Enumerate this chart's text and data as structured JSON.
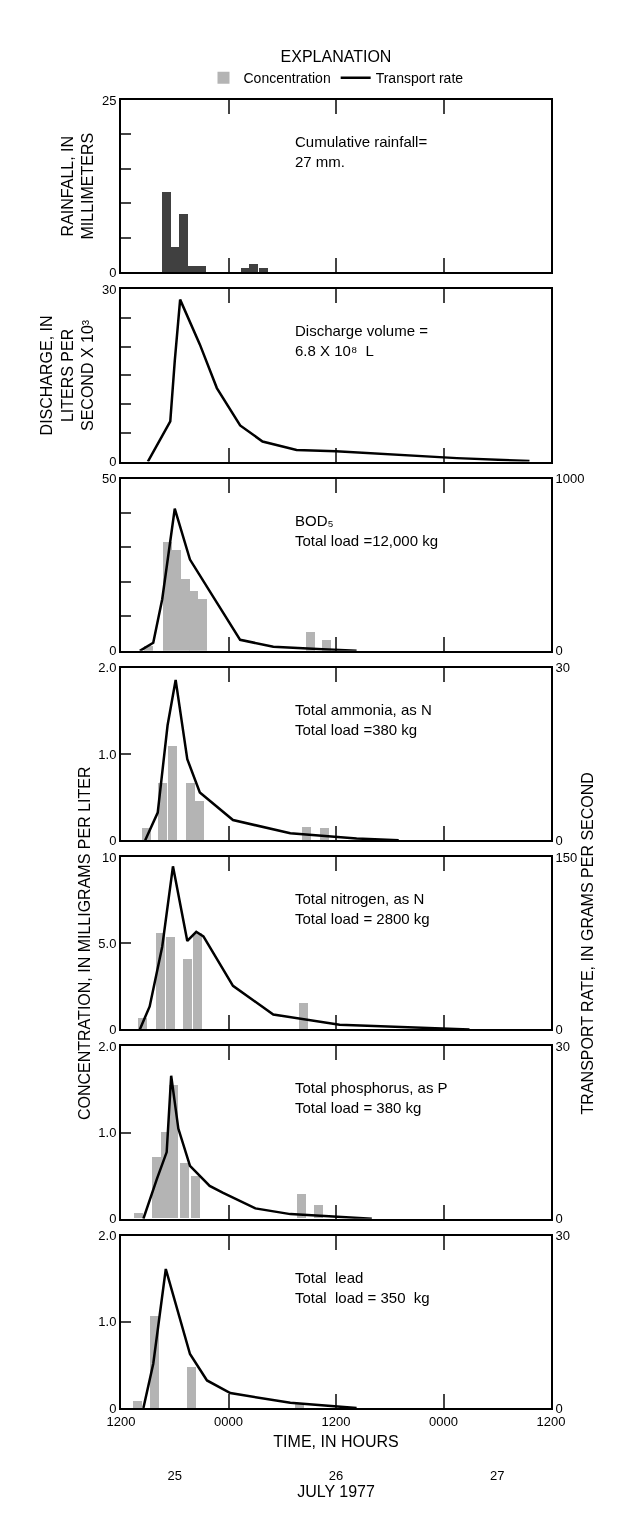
{
  "chart_data": [
    {
      "type": "bar",
      "ylabel": "RAINFALL, IN\nMILLIMETERS",
      "annotations": [
        "Cumulative rainfall=\n27 mm."
      ],
      "xlim": [
        "1977-07-25T12:00",
        "1977-07-27T12:00"
      ],
      "xticks": [
        {
          "value": "1977-07-25T12:00",
          "label": null
        },
        {
          "value": "1977-07-26T00:00",
          "label": null
        },
        {
          "value": "1977-07-26T12:00",
          "label": null
        },
        {
          "value": "1977-07-27T00:00",
          "label": null
        },
        {
          "value": "1977-07-27T12:00",
          "label": null
        }
      ],
      "ylim": [
        0,
        25
      ],
      "yticks": [
        0,
        {
          "value": 5,
          "label": null
        },
        {
          "value": 10,
          "label": null
        },
        {
          "value": 15,
          "label": null
        },
        {
          "value": 20,
          "label": null
        },
        25
      ],
      "tick_labels": "y",
      "series": [
        {
          "color": "#404040",
          "x": [
            "1977-07-25T17:06",
            "1977-07-25T18:00",
            "1977-07-25T19:00",
            "1977-07-25T20:00",
            "1977-07-25T21:00",
            "1977-07-26T01:54",
            "1977-07-26T02:48",
            "1977-07-26T03:54"
          ],
          "values": [
            11.6,
            3.6,
            8.4,
            0.9,
            0.9,
            0.6,
            1.2,
            0.6
          ]
        }
      ]
    },
    {
      "type": "line",
      "ylabel": "DISCHARGE, IN\nLITERS PER\nSECOND X 10³",
      "annotations": [
        "Discharge volume =\n6.8 X 10⁸  L"
      ],
      "xlim": [
        "1977-07-25T12:00",
        "1977-07-27T12:00"
      ],
      "xticks": [
        {
          "value": "1977-07-25T12:00",
          "label": null
        },
        {
          "value": "1977-07-26T00:00",
          "label": null
        },
        {
          "value": "1977-07-26T12:00",
          "label": null
        },
        {
          "value": "1977-07-27T00:00",
          "label": null
        },
        {
          "value": "1977-07-27T12:00",
          "label": null
        }
      ],
      "ylim": [
        0,
        30
      ],
      "yticks": [
        0,
        {
          "value": 5,
          "label": null
        },
        {
          "value": 10,
          "label": null
        },
        {
          "value": 15,
          "label": null
        },
        {
          "value": 20,
          "label": null
        },
        {
          "value": 25,
          "label": null
        },
        30
      ],
      "tick_labels": "y",
      "series": [
        {
          "color": "#000000",
          "x": [
            "1977-07-25T15:00",
            "1977-07-25T17:30",
            "1977-07-25T18:00",
            "1977-07-25T18:36",
            "1977-07-25T20:48",
            "1977-07-25T22:42",
            "1977-07-26T01:18",
            "1977-07-26T03:48",
            "1977-07-26T07:36",
            "1977-07-26T12:00",
            "1977-07-27T01:30",
            "1977-07-27T09:36"
          ],
          "values": [
            0,
            7.0,
            17.5,
            28.2,
            20.4,
            12.8,
            6.3,
            3.5,
            2.0,
            1.8,
            0.6,
            0.1
          ]
        }
      ]
    },
    {
      "type": "bar",
      "legend": "top",
      "legend_title": "EXPLANATION",
      "annotations": [
        "BOD₅\nTotal load =12,000 kg"
      ],
      "xlim": [
        "1977-07-25T12:00",
        "1977-07-27T12:00"
      ],
      "xticks": [
        {
          "value": "1977-07-25T12:00",
          "label": null
        },
        {
          "value": "1977-07-26T00:00",
          "label": null
        },
        {
          "value": "1977-07-26T12:00",
          "label": null
        },
        {
          "value": "1977-07-27T00:00",
          "label": null
        },
        {
          "value": "1977-07-27T12:00",
          "label": null
        }
      ],
      "ylim": [
        0,
        50
      ],
      "yticks": [
        0,
        {
          "value": 10,
          "label": null
        },
        {
          "value": 20,
          "label": null
        },
        {
          "value": 30,
          "label": null
        },
        {
          "value": 40,
          "label": null
        },
        50
      ],
      "y2lim": [
        0,
        1000
      ],
      "y2ticks": [
        0,
        1000
      ],
      "tick_labels": "y",
      "series": [
        {
          "name": "Concentration",
          "color": "#b4b4b4",
          "x": [
            "1977-07-25T15:06",
            "1977-07-25T17:12",
            "1977-07-25T18:12",
            "1977-07-25T19:12",
            "1977-07-25T20:06",
            "1977-07-25T21:06",
            "1977-07-26T09:06",
            "1977-07-26T10:54"
          ],
          "values": [
            1.5,
            31.6,
            29.5,
            21,
            17.5,
            15.2,
            5.6,
            3.2
          ]
        },
        {
          "type": "line",
          "name": "Transport rate",
          "axis": "y2",
          "color": "#000000",
          "x": [
            "1977-07-25T14:06",
            "1977-07-25T15:36",
            "1977-07-25T16:36",
            "1977-07-25T18:00",
            "1977-07-25T19:42",
            "1977-07-25T22:42",
            "1977-07-26T01:18",
            "1977-07-26T05:00",
            "1977-07-26T10:30",
            "1977-07-26T14:18"
          ],
          "values": [
            0,
            47,
            300,
            825,
            530,
            280,
            64,
            24,
            10,
            0
          ]
        }
      ]
    },
    {
      "type": "bar",
      "annotations": [
        "Total ammonia, as N\nTotal load =380 kg"
      ],
      "xlim": [
        "1977-07-25T12:00",
        "1977-07-27T12:00"
      ],
      "xticks": [
        {
          "value": "1977-07-25T12:00",
          "label": null
        },
        {
          "value": "1977-07-26T00:00",
          "label": null
        },
        {
          "value": "1977-07-26T12:00",
          "label": null
        },
        {
          "value": "1977-07-27T00:00",
          "label": null
        },
        {
          "value": "1977-07-27T12:00",
          "label": null
        }
      ],
      "ylim": [
        0,
        2
      ],
      "yticks": [
        0,
        {
          "value": 1,
          "label": "1.0"
        },
        {
          "value": 2,
          "label": "2.0"
        }
      ],
      "y2lim": [
        0,
        30
      ],
      "y2ticks": [
        0,
        30
      ],
      "tick_labels": "y",
      "series": [
        {
          "color": "#b4b4b4",
          "x": [
            "1977-07-25T14:48",
            "1977-07-25T16:36",
            "1977-07-25T17:42",
            "1977-07-25T19:48",
            "1977-07-25T20:48",
            "1977-07-26T08:42",
            "1977-07-26T10:42"
          ],
          "values": [
            0.14,
            0.66,
            1.1,
            0.66,
            0.46,
            0.15,
            0.14
          ]
        },
        {
          "type": "line",
          "axis": "y2",
          "color": "#000000",
          "x": [
            "1977-07-25T14:42",
            "1977-07-25T16:06",
            "1977-07-25T17:12",
            "1977-07-25T18:06",
            "1977-07-25T19:24",
            "1977-07-25T20:48",
            "1977-07-26T00:30",
            "1977-07-26T06:54",
            "1977-07-26T14:18",
            "1977-07-26T19:00"
          ],
          "values": [
            0,
            4.8,
            20,
            27.9,
            14.1,
            8.3,
            3.5,
            1.2,
            0.3,
            0
          ]
        }
      ]
    },
    {
      "type": "bar",
      "ylabel": "CONCENTRATION, IN MILLIGRAMS PER LITER",
      "y2label": "TRANSPORT RATE, IN GRAMS PER SECOND",
      "annotations": [
        "Total nitrogen, as N\nTotal load = 2800 kg"
      ],
      "xlim": [
        "1977-07-25T12:00",
        "1977-07-27T12:00"
      ],
      "xticks": [
        {
          "value": "1977-07-25T12:00",
          "label": null
        },
        {
          "value": "1977-07-26T00:00",
          "label": null
        },
        {
          "value": "1977-07-26T12:00",
          "label": null
        },
        {
          "value": "1977-07-27T00:00",
          "label": null
        },
        {
          "value": "1977-07-27T12:00",
          "label": null
        }
      ],
      "ylim": [
        0,
        10
      ],
      "yticks": [
        0,
        {
          "value": 5,
          "label": "5.0"
        },
        10
      ],
      "y2lim": [
        0,
        150
      ],
      "y2ticks": [
        0,
        150
      ],
      "tick_labels": "y",
      "series": [
        {
          "color": "#b4b4b4",
          "x": [
            "1977-07-25T14:24",
            "1977-07-25T16:24",
            "1977-07-25T17:30",
            "1977-07-25T19:24",
            "1977-07-25T20:30",
            "1977-07-26T08:24"
          ],
          "values": [
            0.64,
            5.6,
            5.35,
            4.07,
            5.6,
            1.5
          ]
        },
        {
          "type": "line",
          "axis": "y2",
          "color": "#000000",
          "x": [
            "1977-07-25T14:06",
            "1977-07-25T15:12",
            "1977-07-25T16:36",
            "1977-07-25T17:48",
            "1977-07-25T19:24",
            "1977-07-25T20:24",
            "1977-07-25T21:12",
            "1977-07-26T00:30",
            "1977-07-26T05:00",
            "1977-07-26T12:24",
            "1977-07-27T02:54"
          ],
          "values": [
            0,
            20,
            72,
            142,
            77,
            85,
            81,
            38,
            13,
            4,
            0
          ]
        }
      ]
    },
    {
      "type": "bar",
      "annotations": [
        "Total phosphorus, as P\nTotal load = 380 kg"
      ],
      "xlim": [
        "1977-07-25T12:00",
        "1977-07-27T12:00"
      ],
      "xticks": [
        {
          "value": "1977-07-25T12:00",
          "label": null
        },
        {
          "value": "1977-07-26T00:00",
          "label": null
        },
        {
          "value": "1977-07-26T12:00",
          "label": null
        },
        {
          "value": "1977-07-27T00:00",
          "label": null
        },
        {
          "value": "1977-07-27T12:00",
          "label": null
        }
      ],
      "ylim": [
        0,
        2
      ],
      "yticks": [
        0,
        {
          "value": 1,
          "label": "1.0"
        },
        {
          "value": 2,
          "label": "2.0"
        }
      ],
      "y2lim": [
        0,
        30
      ],
      "y2ticks": [
        0,
        30
      ],
      "tick_labels": "y",
      "series": [
        {
          "color": "#b4b4b4",
          "x": [
            "1977-07-25T14:00",
            "1977-07-25T16:00",
            "1977-07-25T17:00",
            "1977-07-25T17:54",
            "1977-07-25T19:06",
            "1977-07-25T20:18",
            "1977-07-26T08:06",
            "1977-07-26T10:00"
          ],
          "values": [
            0.06,
            0.71,
            1.0,
            1.55,
            0.64,
            0.49,
            0.28,
            0.16
          ]
        },
        {
          "type": "line",
          "axis": "y2",
          "color": "#000000",
          "x": [
            "1977-07-25T14:30",
            "1977-07-25T16:00",
            "1977-07-25T17:06",
            "1977-07-25T17:36",
            "1977-07-25T18:24",
            "1977-07-25T19:42",
            "1977-07-25T21:54",
            "1977-07-25T23:24",
            "1977-07-26T03:00",
            "1977-07-26T06:54",
            "1977-07-26T16:00"
          ],
          "values": [
            0,
            6.9,
            11.6,
            24.9,
            15.7,
            9.2,
            5.7,
            4.5,
            1.8,
            0.8,
            0
          ]
        }
      ]
    },
    {
      "type": "bar",
      "xlabel": "TIME, IN HOURS",
      "x2label": "JULY 1977",
      "annotations": [
        "Total  lead\nTotal  load = 350  kg"
      ],
      "xlim": [
        "1977-07-25T12:00",
        "1977-07-27T12:00"
      ],
      "xticks": [
        {
          "value": "1977-07-25T12:00",
          "label": "1200"
        },
        {
          "value": "1977-07-26T00:00",
          "label": "0000"
        },
        {
          "value": "1977-07-26T12:00",
          "label": "1200"
        },
        {
          "value": "1977-07-27T00:00",
          "label": "0000"
        },
        {
          "value": "1977-07-27T12:00",
          "label": "1200"
        }
      ],
      "x2lim": [
        "1977-07-25T12:00",
        "1977-07-27T12:00"
      ],
      "x2ticks": [
        {
          "value": "1977-07-25T18:00",
          "label": "25"
        },
        {
          "value": "1977-07-26T12:00",
          "label": "26"
        },
        {
          "value": "1977-07-27T06:00",
          "label": "27"
        }
      ],
      "ylim": [
        0,
        2
      ],
      "yticks": [
        0,
        {
          "value": 1,
          "label": "1.0"
        },
        {
          "value": 2,
          "label": "2.0"
        }
      ],
      "y2lim": [
        0,
        30
      ],
      "y2ticks": [
        0,
        30
      ],
      "series": [
        {
          "color": "#b4b4b4",
          "x": [
            "1977-07-25T13:48",
            "1977-07-25T15:42",
            "1977-07-25T19:54",
            "1977-07-26T07:54"
          ],
          "values": [
            0.08,
            1.07,
            0.48,
            0.05
          ]
        },
        {
          "type": "line",
          "axis": "y2",
          "color": "#000000",
          "x": [
            "1977-07-25T14:30",
            "1977-07-25T15:36",
            "1977-07-25T17:00",
            "1977-07-25T19:42",
            "1977-07-25T21:36",
            "1977-07-26T00:12",
            "1977-07-26T06:54",
            "1977-07-26T14:18"
          ],
          "values": [
            0,
            7.7,
            24.2,
            9.4,
            4.8,
            2.6,
            0.9,
            0
          ]
        }
      ]
    }
  ]
}
